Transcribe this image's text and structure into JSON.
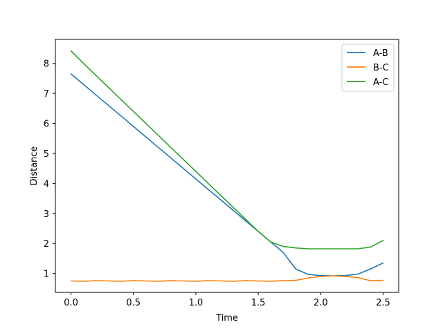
{
  "chart_data": {
    "type": "line",
    "title": "",
    "xlabel": "Time",
    "ylabel": "Distance",
    "xlim": [
      -0.125,
      2.625
    ],
    "ylim": [
      0.37,
      8.8
    ],
    "xticks": [
      0.0,
      0.5,
      1.0,
      1.5,
      2.0,
      2.5
    ],
    "xtick_labels": [
      "0.0",
      "0.5",
      "1.0",
      "1.5",
      "2.0",
      "2.5"
    ],
    "yticks": [
      1,
      2,
      3,
      4,
      5,
      6,
      7,
      8
    ],
    "ytick_labels": [
      "1",
      "2",
      "3",
      "4",
      "5",
      "6",
      "7",
      "8"
    ],
    "grid": false,
    "legend_position": "top-right",
    "series": [
      {
        "name": "A-B",
        "color": "#1f77b4",
        "x": [
          0.0,
          0.1,
          0.2,
          0.3,
          0.4,
          0.5,
          0.6,
          0.7,
          0.8,
          0.9,
          1.0,
          1.1,
          1.2,
          1.3,
          1.4,
          1.5,
          1.6,
          1.7,
          1.8,
          1.9,
          2.0,
          2.1,
          2.2,
          2.3,
          2.4,
          2.5
        ],
        "values": [
          7.65,
          7.3,
          6.95,
          6.6,
          6.25,
          5.9,
          5.55,
          5.2,
          4.85,
          4.5,
          4.15,
          3.8,
          3.45,
          3.1,
          2.75,
          2.4,
          2.05,
          1.7,
          1.15,
          0.97,
          0.93,
          0.92,
          0.93,
          0.98,
          1.15,
          1.35
        ]
      },
      {
        "name": "B-C",
        "color": "#ff7f0e",
        "x": [
          0.0,
          0.1,
          0.2,
          0.3,
          0.4,
          0.5,
          0.6,
          0.7,
          0.8,
          0.9,
          1.0,
          1.1,
          1.2,
          1.3,
          1.4,
          1.5,
          1.6,
          1.7,
          1.8,
          1.9,
          2.0,
          2.1,
          2.2,
          2.3,
          2.4,
          2.5
        ],
        "values": [
          0.75,
          0.74,
          0.76,
          0.75,
          0.74,
          0.76,
          0.75,
          0.74,
          0.76,
          0.75,
          0.74,
          0.76,
          0.75,
          0.74,
          0.76,
          0.75,
          0.74,
          0.76,
          0.77,
          0.85,
          0.9,
          0.92,
          0.9,
          0.86,
          0.76,
          0.77
        ]
      },
      {
        "name": "A-C",
        "color": "#2ca02c",
        "x": [
          0.0,
          0.1,
          0.2,
          0.3,
          0.4,
          0.5,
          0.6,
          0.7,
          0.8,
          0.9,
          1.0,
          1.1,
          1.2,
          1.3,
          1.4,
          1.5,
          1.6,
          1.7,
          1.8,
          1.9,
          2.0,
          2.1,
          2.2,
          2.3,
          2.4,
          2.5
        ],
        "values": [
          8.42,
          8.0,
          7.6,
          7.2,
          6.8,
          6.4,
          6.0,
          5.6,
          5.2,
          4.8,
          4.4,
          4.0,
          3.6,
          3.2,
          2.8,
          2.4,
          2.05,
          1.9,
          1.85,
          1.82,
          1.82,
          1.82,
          1.82,
          1.82,
          1.88,
          2.1
        ]
      }
    ]
  }
}
